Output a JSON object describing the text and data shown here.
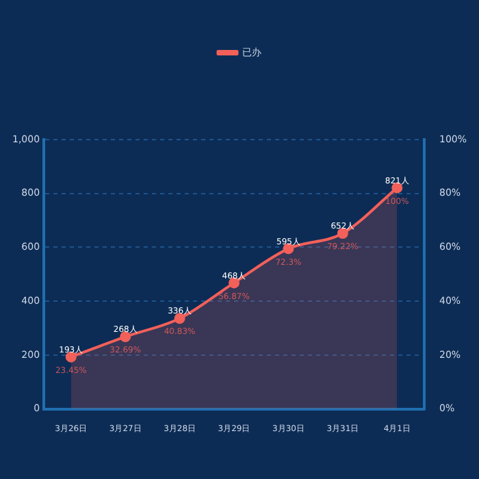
{
  "chart_data": {
    "type": "area",
    "categories": [
      "3月26日",
      "3月27日",
      "3月28日",
      "3月29日",
      "3月30日",
      "3月31日",
      "4月1日"
    ],
    "series": [
      {
        "name": "已办",
        "color": "#f2605a",
        "values": [
          193,
          268,
          336,
          468,
          595,
          652,
          821
        ],
        "value_labels": [
          "193人",
          "268人",
          "336人",
          "468人",
          "595人",
          "652人",
          "821人"
        ]
      }
    ],
    "ylim": [
      0,
      1000
    ],
    "yticks": [
      0,
      200,
      400,
      600,
      800,
      {
        "value": 1000,
        "label": "1,000"
      }
    ],
    "y2lim": [
      0,
      100
    ],
    "y2ticks": [
      {
        "value": 0,
        "label": "0%"
      },
      {
        "value": 20,
        "label": "20%"
      },
      {
        "value": 40,
        "label": "40%"
      },
      {
        "value": 60,
        "label": "60%"
      },
      {
        "value": 80,
        "label": "80%"
      },
      {
        "value": 100,
        "label": "100%"
      }
    ],
    "annotations": [
      {
        "text": "23.45%",
        "x": "3月26日",
        "y": 193
      },
      {
        "text": "32.69%",
        "x": "3月27日",
        "y": 268
      },
      {
        "text": "40.83%",
        "x": "3月28日",
        "y": 336
      },
      {
        "text": "56.87%",
        "x": "3月29日",
        "y": 468
      },
      {
        "text": "72.3%",
        "x": "3月30日",
        "y": 595
      },
      {
        "text": "79.22%",
        "x": "3月31日",
        "y": 652
      },
      {
        "text": "100%",
        "x": "4月1日",
        "y": 821
      }
    ],
    "grid": "y",
    "legend": "top",
    "marker": "circle",
    "line_style": "solid"
  }
}
